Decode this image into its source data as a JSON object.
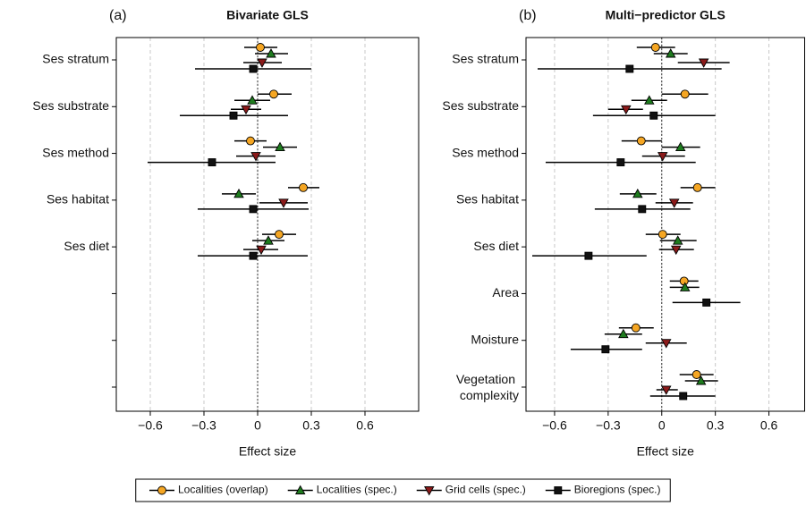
{
  "chart_data": [
    {
      "type": "forest",
      "panel_label": "(a)",
      "title": "Bivariate GLS",
      "x_label": "Effect size",
      "categories": [
        "Ses stratum",
        "Ses substrate",
        "Ses method",
        "Ses habitat",
        "Ses diet",
        null,
        null,
        null
      ],
      "xlim": [
        -0.79,
        0.9
      ],
      "xticks": [
        {
          "value": -0.6,
          "label": "−0.6"
        },
        {
          "value": -0.3,
          "label": "−0.3"
        },
        0,
        0.3,
        0.6
      ],
      "grid": true,
      "reference_line": 0,
      "legend": "bottom",
      "series": [
        {
          "name": "Localities (overlap)",
          "color": "#f5a623",
          "marker": "circle",
          "values": [
            0.015,
            0.09,
            -0.04,
            0.255,
            0.12,
            null,
            null,
            null
          ],
          "lower": [
            -0.075,
            0,
            -0.13,
            0.17,
            0.025,
            null,
            null,
            null
          ],
          "upper": [
            0.11,
            0.19,
            0.05,
            0.345,
            0.215,
            null,
            null,
            null
          ]
        },
        {
          "name": "Localities (spec.)",
          "color": "#1e7b1e",
          "marker": "triangle-up",
          "values": [
            0.075,
            -0.03,
            0.125,
            -0.105,
            0.06,
            null,
            null,
            null
          ],
          "lower": [
            -0.015,
            -0.13,
            0.03,
            -0.2,
            -0.03,
            null,
            null,
            null
          ],
          "upper": [
            0.17,
            0.07,
            0.22,
            -0.01,
            0.15,
            null,
            null,
            null
          ]
        },
        {
          "name": "Grid cells (spec.)",
          "color": "#8b1a1a",
          "marker": "triangle-down",
          "values": [
            0.025,
            -0.065,
            -0.01,
            0.145,
            0.02,
            null,
            null,
            null
          ],
          "lower": [
            -0.08,
            -0.15,
            -0.12,
            0.01,
            -0.08,
            null,
            null,
            null
          ],
          "upper": [
            0.135,
            0.02,
            0.1,
            0.28,
            0.115,
            null,
            null,
            null
          ]
        },
        {
          "name": "Bioregions (spec.)",
          "color": "#111111",
          "marker": "square",
          "values": [
            -0.025,
            -0.135,
            -0.255,
            -0.025,
            -0.025,
            null,
            null,
            null
          ],
          "lower": [
            -0.35,
            -0.435,
            -0.615,
            -0.335,
            -0.335,
            null,
            null,
            null
          ],
          "upper": [
            0.3,
            0.17,
            0.1,
            0.285,
            0.28,
            null,
            null,
            null
          ]
        }
      ]
    },
    {
      "type": "forest",
      "panel_label": "(b)",
      "title": "Multi−predictor GLS",
      "x_label": "Effect size",
      "categories": [
        "Ses stratum",
        "Ses substrate",
        "Ses method",
        "Ses habitat",
        "Ses diet",
        "Area",
        "Moisture",
        "Vegetation complexity"
      ],
      "xlim": [
        -0.76,
        0.8
      ],
      "xticks": [
        {
          "value": -0.6,
          "label": "−0.6"
        },
        {
          "value": -0.3,
          "label": "−0.3"
        },
        0,
        0.3,
        0.6
      ],
      "grid": true,
      "reference_line": 0,
      "series": [
        {
          "values": [
            -0.035,
            0.13,
            -0.115,
            0.2,
            0.005,
            0.125,
            -0.145,
            0.195
          ],
          "lower": [
            -0.14,
            0,
            -0.225,
            0.105,
            -0.09,
            0.045,
            -0.24,
            0.1
          ],
          "upper": [
            0.075,
            0.26,
            0,
            0.3,
            0.105,
            0.205,
            -0.045,
            0.29
          ]
        },
        {
          "values": [
            0.05,
            -0.07,
            0.105,
            -0.135,
            0.09,
            0.13,
            -0.215,
            0.22
          ],
          "lower": [
            -0.045,
            -0.17,
            0,
            -0.235,
            -0.01,
            0.045,
            -0.32,
            0.13
          ],
          "upper": [
            0.145,
            0.03,
            0.215,
            -0.03,
            0.195,
            0.21,
            -0.11,
            0.315
          ]
        },
        {
          "values": [
            0.235,
            -0.2,
            0.005,
            0.07,
            0.08,
            null,
            0.025,
            0.025
          ],
          "lower": [
            0.09,
            -0.3,
            -0.11,
            -0.035,
            -0.015,
            null,
            -0.09,
            -0.03
          ],
          "upper": [
            0.38,
            -0.105,
            0.13,
            0.175,
            0.18,
            null,
            0.14,
            0.09
          ]
        },
        {
          "values": [
            -0.18,
            -0.045,
            -0.23,
            -0.11,
            -0.41,
            0.25,
            -0.315,
            0.12
          ],
          "lower": [
            -0.695,
            -0.385,
            -0.65,
            -0.375,
            -0.725,
            0.06,
            -0.51,
            -0.065
          ],
          "upper": [
            0.335,
            0.3,
            0.19,
            0.16,
            -0.085,
            0.44,
            -0.11,
            0.3
          ]
        }
      ]
    }
  ]
}
